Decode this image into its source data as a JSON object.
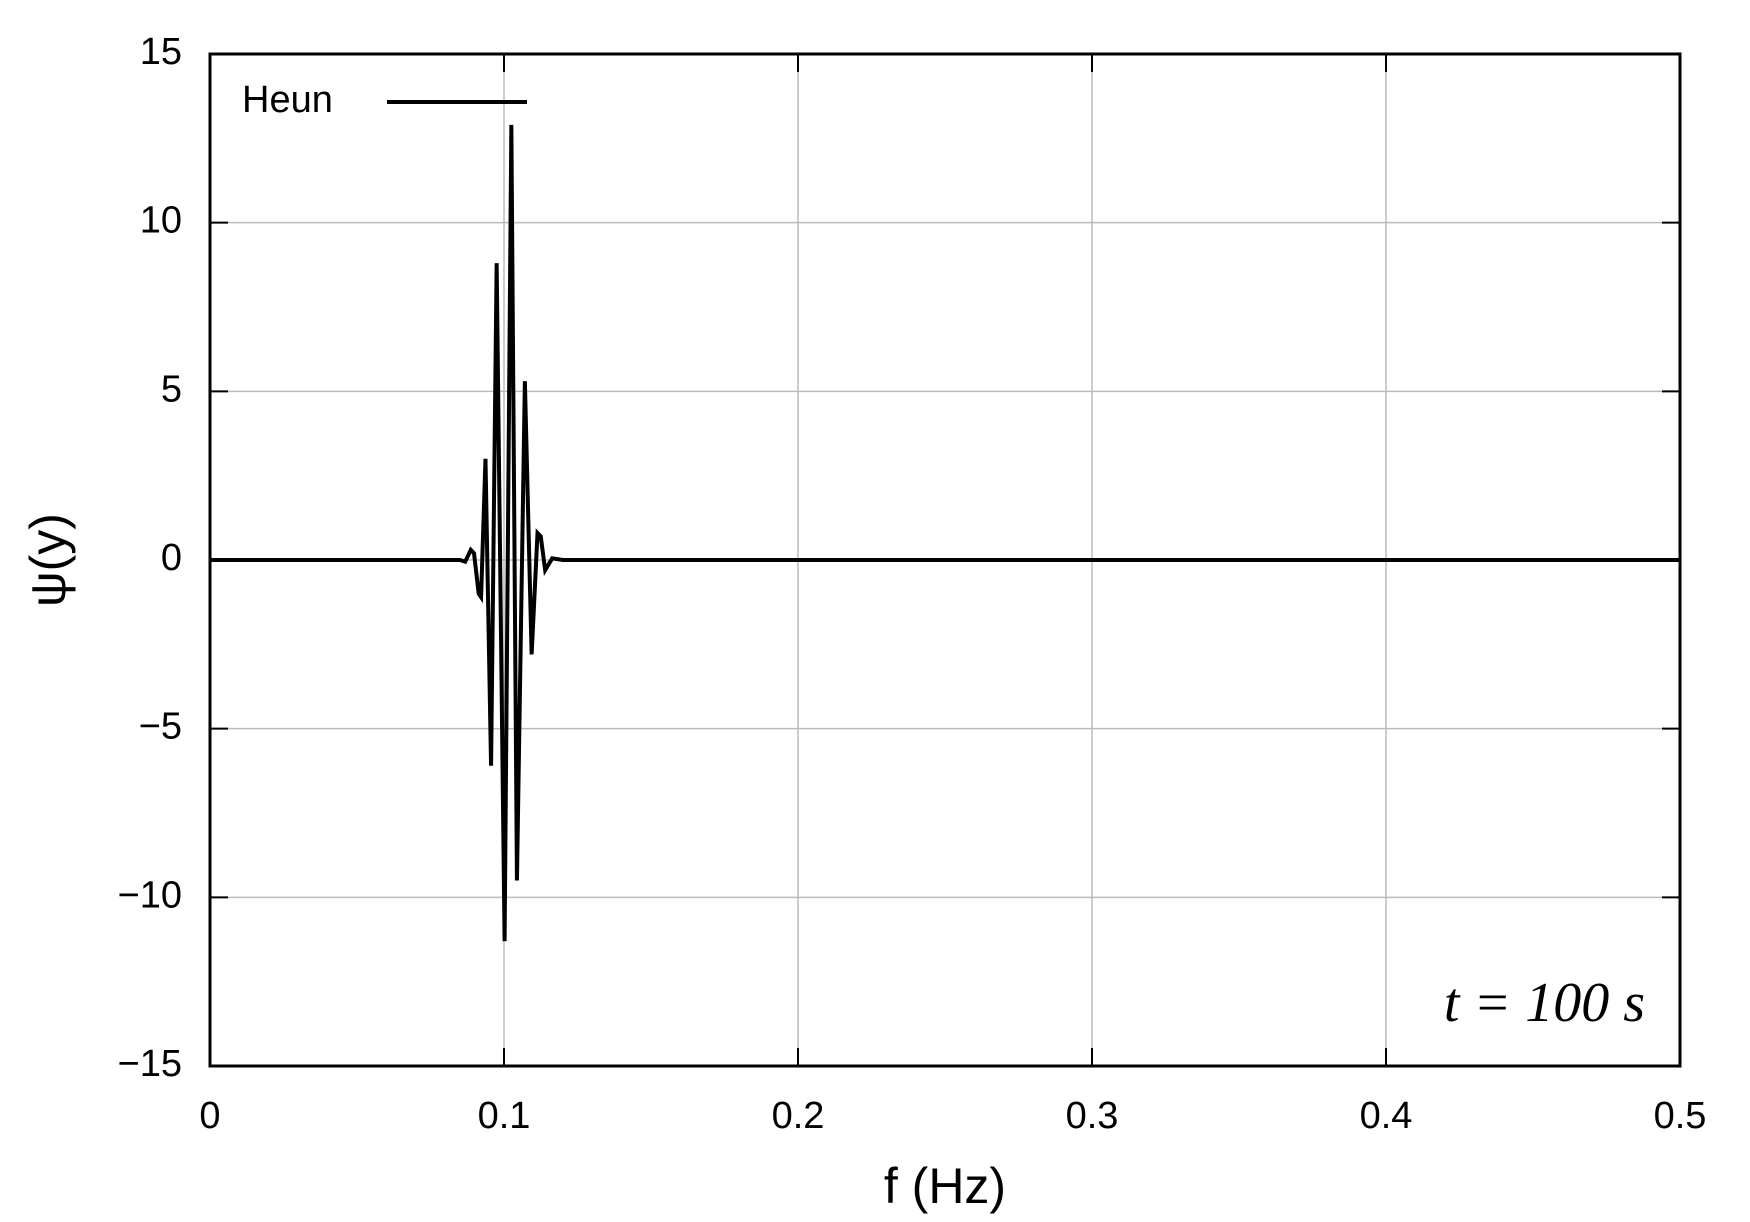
{
  "chart_data": {
    "type": "line",
    "x_label": "f (Hz)",
    "y_label": "ψ(y)",
    "annotation": "t = 100 s",
    "legend_position": "upper left",
    "grid": true,
    "xlim": [
      0,
      0.5
    ],
    "ylim": [
      -15,
      15
    ],
    "xticks": [
      0,
      0.1,
      0.2,
      0.3,
      0.4,
      0.5
    ],
    "yticks": [
      {
        "value": -15,
        "label": "−15"
      },
      {
        "value": -10,
        "label": "−10"
      },
      {
        "value": -5,
        "label": "−5"
      },
      0,
      5,
      10,
      15
    ],
    "x": [
      0,
      0.05,
      0.08,
      0.085,
      0.0868,
      0.0887,
      0.0898,
      0.0914,
      0.0922,
      0.0937,
      0.0956,
      0.0975,
      0.1002,
      0.1025,
      0.1044,
      0.1071,
      0.1094,
      0.1114,
      0.1125,
      0.114,
      0.1164,
      0.12,
      0.2,
      0.3,
      0.4,
      0.5
    ],
    "series": [
      {
        "name": "Heun",
        "color": "#000000",
        "values": [
          0,
          0,
          0,
          0,
          -0.05,
          0.3,
          0.2,
          -1.0,
          -1.1,
          3.0,
          -6.1,
          8.8,
          -11.3,
          12.9,
          -9.5,
          5.3,
          -2.8,
          0.8,
          0.7,
          -0.3,
          0.05,
          0,
          0,
          0,
          0,
          0
        ]
      }
    ]
  }
}
